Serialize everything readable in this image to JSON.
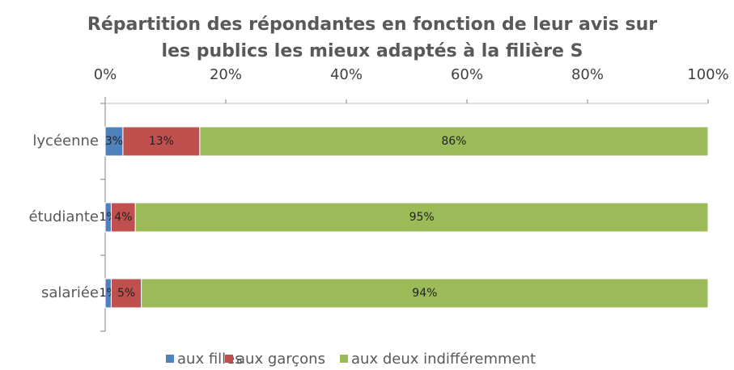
{
  "chart_data": {
    "type": "bar",
    "orientation": "horizontal",
    "stacking": "percent",
    "title": "Répartition des répondantes en fonction de leur avis sur les publics les mieux adaptés à la filière S",
    "categories": [
      "lycéenne",
      "étudiante",
      "salariée"
    ],
    "series": [
      {
        "name": "aux filles",
        "color": "#4f81bd",
        "values": [
          3,
          1,
          1
        ],
        "value_labels": [
          "3%",
          "1%",
          "1%"
        ]
      },
      {
        "name": "aux garçons",
        "color": "#c0504d",
        "values": [
          13,
          4,
          5
        ],
        "value_labels": [
          "13%",
          "4%",
          "5%"
        ]
      },
      {
        "name": "aux deux indifféremment",
        "color": "#9bbb59",
        "values": [
          86,
          95,
          94
        ],
        "value_labels": [
          "86%",
          "95%",
          "94%"
        ]
      }
    ],
    "xlim": [
      0,
      100
    ],
    "xticks": [
      {
        "value": 0,
        "label": "0%"
      },
      {
        "value": 20,
        "label": "20%"
      },
      {
        "value": 40,
        "label": "40%"
      },
      {
        "value": 60,
        "label": "60%"
      },
      {
        "value": 80,
        "label": "80%"
      },
      {
        "value": 100,
        "label": "100%"
      }
    ],
    "legend": "bottom"
  }
}
